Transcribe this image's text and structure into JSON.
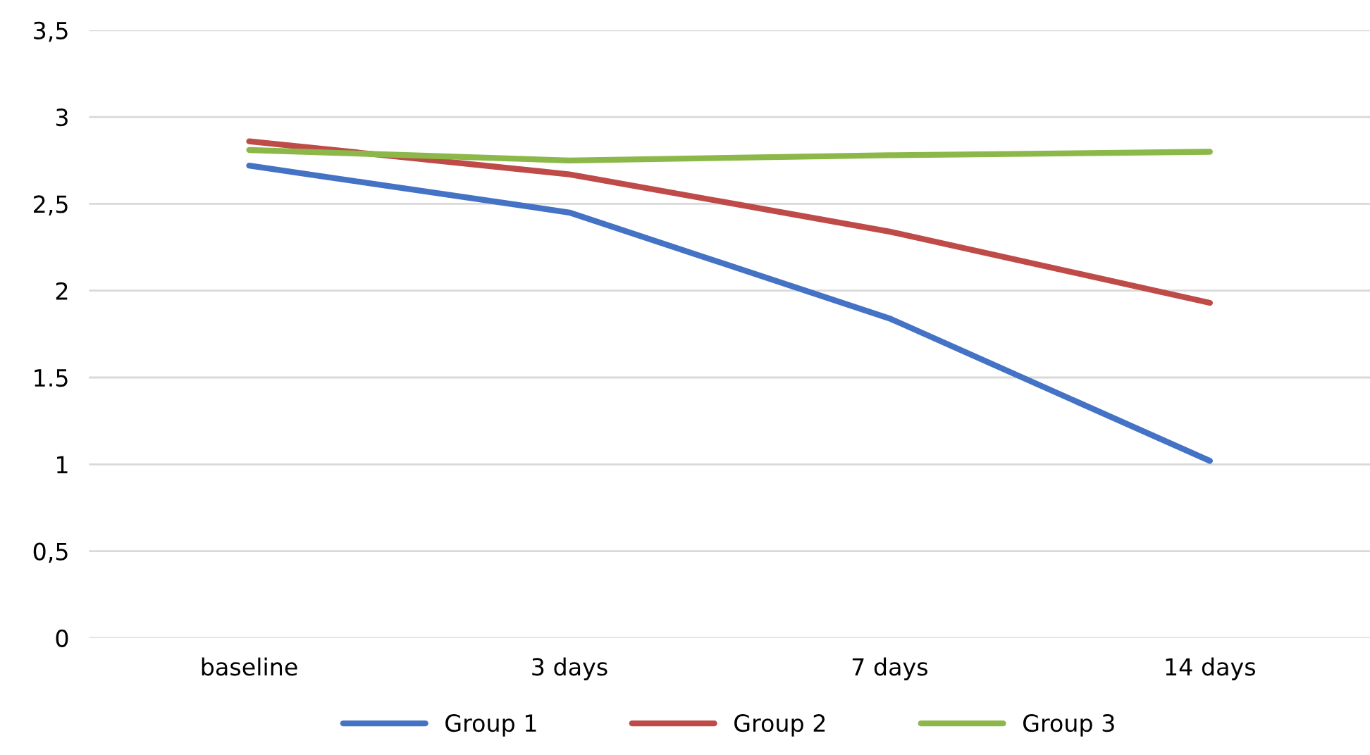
{
  "chart_data": {
    "type": "line",
    "categories": [
      "baseline",
      "3 days",
      "7 days",
      "14 days"
    ],
    "series": [
      {
        "name": "Group 1",
        "color": "#4472c4",
        "values": [
          2.72,
          2.45,
          1.84,
          1.02
        ]
      },
      {
        "name": "Group 2",
        "color": "#be4b48",
        "values": [
          2.86,
          2.67,
          2.34,
          1.93
        ]
      },
      {
        "name": "Group 3",
        "color": "#8cb84a",
        "values": [
          2.81,
          2.75,
          2.78,
          2.8
        ]
      }
    ],
    "ylim": [
      0,
      3.5
    ],
    "yticks": [
      0,
      {
        "value": 0.5,
        "label": "0,5"
      },
      1,
      {
        "value": 1.5,
        "label": "1.5"
      },
      2,
      {
        "value": 2.5,
        "label": "2,5"
      },
      3,
      {
        "value": 3.5,
        "label": "3,5"
      }
    ],
    "grid": "y",
    "legend": "bottom",
    "marker": "none",
    "line_style": "solid"
  }
}
